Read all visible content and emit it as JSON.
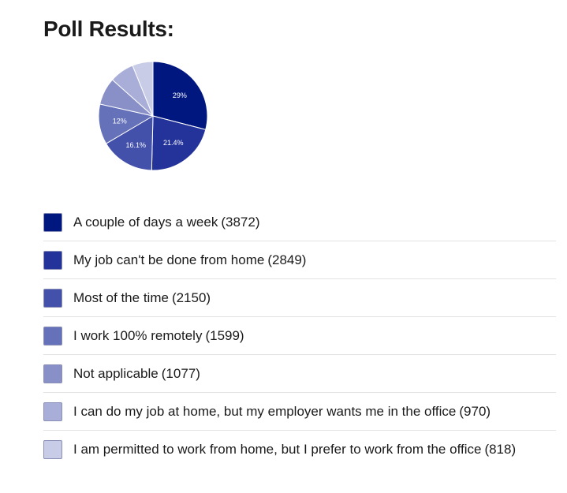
{
  "title": "Poll Results:",
  "chart_data": {
    "type": "pie",
    "title": "",
    "slices": [
      {
        "label": "A couple of days a week",
        "value": 3872,
        "percent_label": "29%",
        "color": "#00177f"
      },
      {
        "label": "My job can't be done from home",
        "value": 2849,
        "percent_label": "21.4%",
        "color": "#23339a"
      },
      {
        "label": "Most of the time",
        "value": 2150,
        "percent_label": "16.1%",
        "color": "#4351aa"
      },
      {
        "label": "I work 100% remotely",
        "value": 1599,
        "percent_label": "12%",
        "color": "#6571b9"
      },
      {
        "label": "Not applicable",
        "value": 1077,
        "percent_label": "",
        "color": "#8990c8"
      },
      {
        "label": "I can do my job at home, but my employer wants me in the office",
        "value": 970,
        "percent_label": "",
        "color": "#a9aed8"
      },
      {
        "label": "I am permitted to work from home, but I prefer to work from the office",
        "value": 818,
        "percent_label": "",
        "color": "#c9cce6"
      }
    ]
  },
  "legend": {
    "items": [
      {
        "label": "A couple of days a week",
        "count": "(3872)",
        "color": "#00177f"
      },
      {
        "label": "My job can't be done from home",
        "count": "(2849)",
        "color": "#23339a"
      },
      {
        "label": "Most of the time",
        "count": "(2150)",
        "color": "#4351aa"
      },
      {
        "label": "I work 100% remotely",
        "count": "(1599)",
        "color": "#6571b9"
      },
      {
        "label": "Not applicable",
        "count": "(1077)",
        "color": "#8990c8"
      },
      {
        "label": "I can do my job at home, but my employer wants me in the office",
        "count": "(970)",
        "color": "#a9aed8"
      },
      {
        "label": "I am permitted to work from home, but I prefer to work from the office",
        "count": "(818)",
        "color": "#c9cce6"
      }
    ]
  }
}
